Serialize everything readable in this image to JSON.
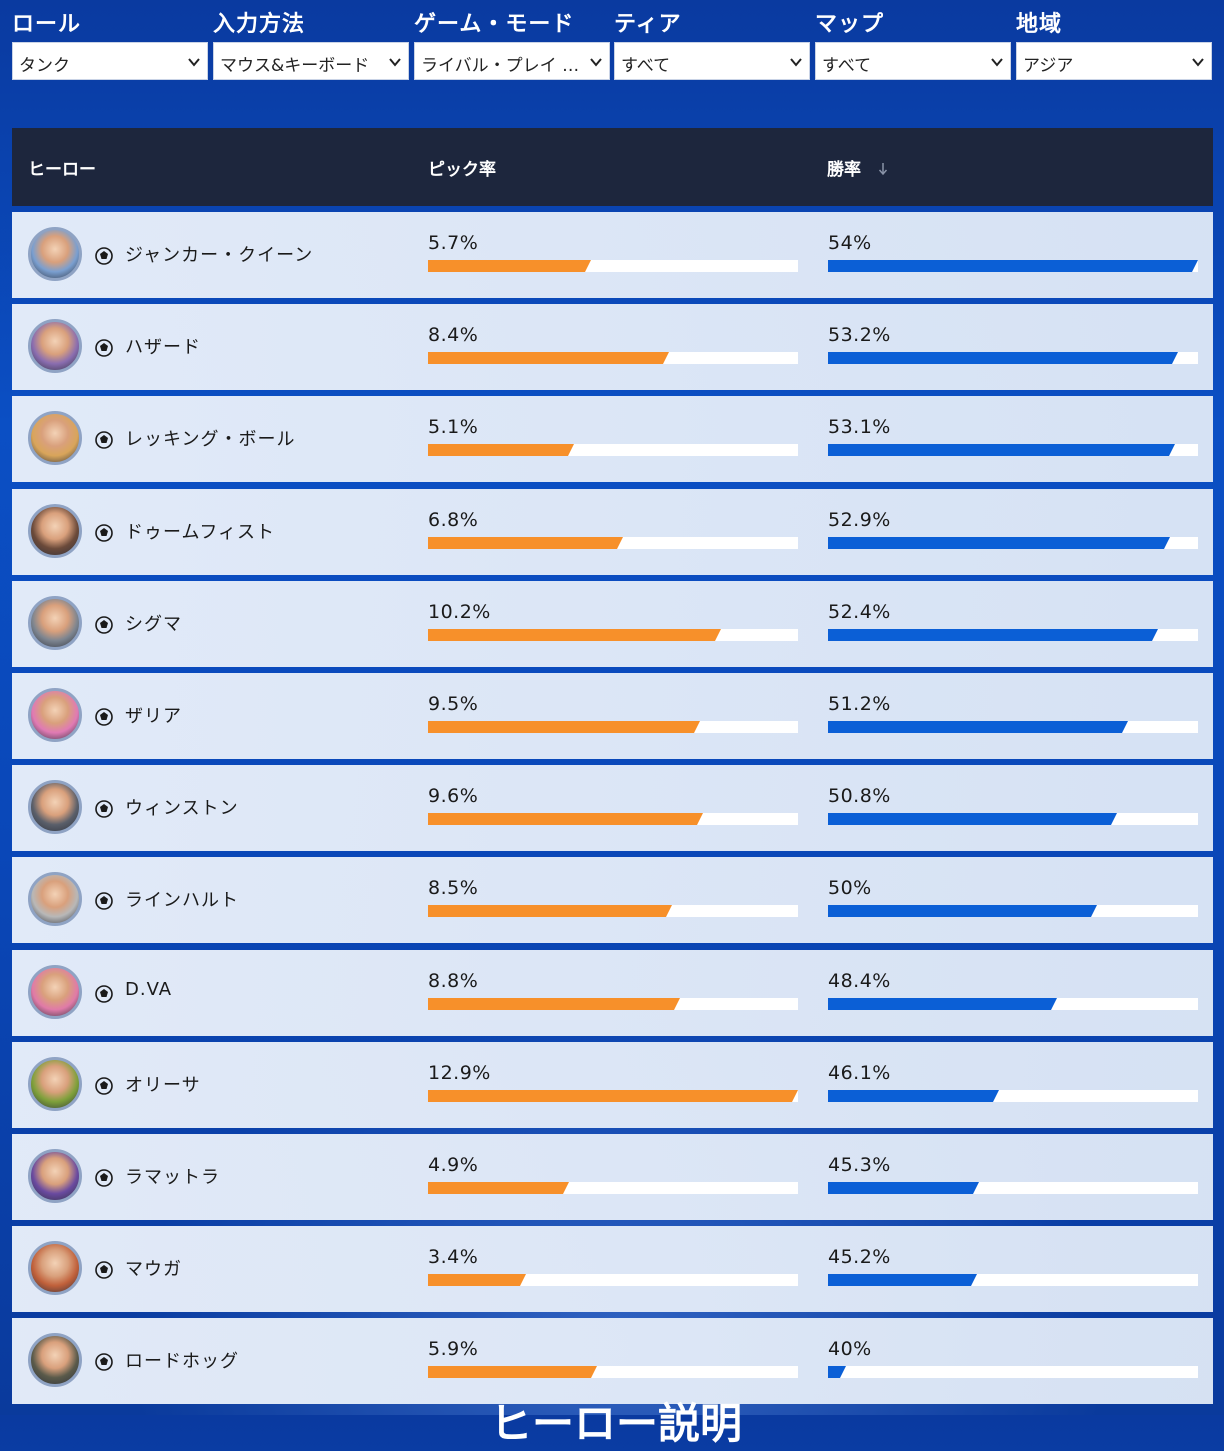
{
  "filters": [
    {
      "label": "ロール",
      "value": "タンク"
    },
    {
      "label": "入力方法",
      "value": "マウス&キーボード"
    },
    {
      "label": "ゲーム・モード",
      "value": "ライバル・プレイ …"
    },
    {
      "label": "ティア",
      "value": "すべて"
    },
    {
      "label": "マップ",
      "value": "すべて"
    },
    {
      "label": "地域",
      "value": "アジア"
    }
  ],
  "table": {
    "headers": {
      "hero": "ヒーロー",
      "pick_rate": "ピック率",
      "win_rate": "勝率"
    },
    "sort_icon": "arrow-down-icon",
    "rows": [
      {
        "name": "ジャンカー・クイーン",
        "pick": "5.7%",
        "win": "54%",
        "pick_pct": 5.7,
        "win_pct": 54,
        "avatar_color": "#7a9fd0"
      },
      {
        "name": "ハザード",
        "pick": "8.4%",
        "win": "53.2%",
        "pick_pct": 8.4,
        "win_pct": 53.2,
        "avatar_color": "#8a6db0"
      },
      {
        "name": "レッキング・ボール",
        "pick": "5.1%",
        "win": "53.1%",
        "pick_pct": 5.1,
        "win_pct": 53.1,
        "avatar_color": "#d9a55a"
      },
      {
        "name": "ドゥームフィスト",
        "pick": "6.8%",
        "win": "52.9%",
        "pick_pct": 6.8,
        "win_pct": 52.9,
        "avatar_color": "#6b4a3a"
      },
      {
        "name": "シグマ",
        "pick": "10.2%",
        "win": "52.4%",
        "pick_pct": 10.2,
        "win_pct": 52.4,
        "avatar_color": "#7d8590"
      },
      {
        "name": "ザリア",
        "pick": "9.5%",
        "win": "51.2%",
        "pick_pct": 9.5,
        "win_pct": 51.2,
        "avatar_color": "#e07ab4"
      },
      {
        "name": "ウィンストン",
        "pick": "9.6%",
        "win": "50.8%",
        "pick_pct": 9.6,
        "win_pct": 50.8,
        "avatar_color": "#5a5f6a"
      },
      {
        "name": "ラインハルト",
        "pick": "8.5%",
        "win": "50%",
        "pick_pct": 8.5,
        "win_pct": 50,
        "avatar_color": "#b8b8b8"
      },
      {
        "name": "D.VA",
        "pick": "8.8%",
        "win": "48.4%",
        "pick_pct": 8.8,
        "win_pct": 48.4,
        "avatar_color": "#e07aa8"
      },
      {
        "name": "オリーサ",
        "pick": "12.9%",
        "win": "46.1%",
        "pick_pct": 12.9,
        "win_pct": 46.1,
        "avatar_color": "#7ea03a"
      },
      {
        "name": "ラマットラ",
        "pick": "4.9%",
        "win": "45.3%",
        "pick_pct": 4.9,
        "win_pct": 45.3,
        "avatar_color": "#6a4aa0"
      },
      {
        "name": "マウガ",
        "pick": "3.4%",
        "win": "45.2%",
        "pick_pct": 3.4,
        "win_pct": 45.2,
        "avatar_color": "#c0603a"
      },
      {
        "name": "ロードホッグ",
        "pick": "5.9%",
        "win": "40%",
        "pick_pct": 5.9,
        "win_pct": 40,
        "avatar_color": "#5a5a4a"
      }
    ]
  },
  "footer": {
    "partial_heading": "ヒーロー説明"
  },
  "colors": {
    "pick_bar": "#f7902a",
    "win_bar": "#0b5fd6",
    "header_bg": "#1d263d"
  }
}
